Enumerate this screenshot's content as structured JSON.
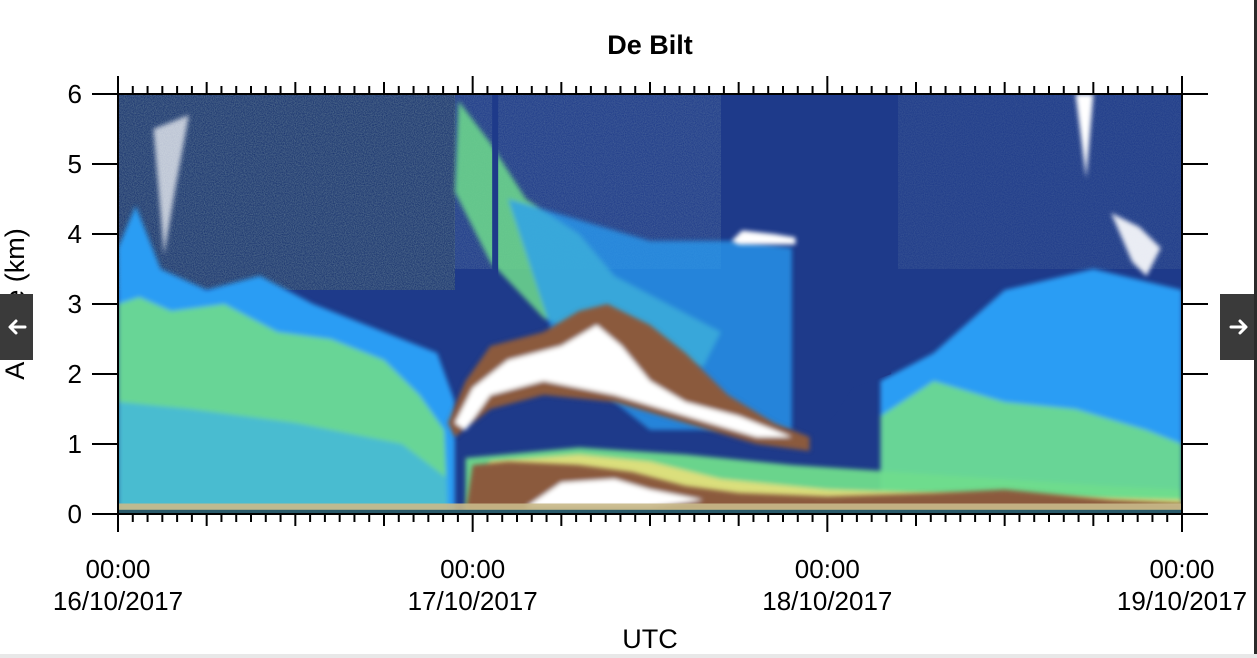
{
  "chart_data": {
    "type": "heatmap",
    "title": "De Bilt",
    "xlabel": "UTC",
    "ylabel": "Altitude (km)",
    "ylim": [
      0,
      6
    ],
    "yticks": [
      "0",
      "1",
      "2",
      "3",
      "4",
      "5",
      "6"
    ],
    "xlim_days": [
      0,
      3
    ],
    "xticks": [
      {
        "day": 0,
        "time": "00:00",
        "date": "16/10/2017"
      },
      {
        "day": 1,
        "time": "00:00",
        "date": "17/10/2017"
      },
      {
        "day": 2,
        "time": "00:00",
        "date": "18/10/2017"
      },
      {
        "day": 3,
        "time": "00:00",
        "date": "19/10/2017"
      }
    ],
    "minor_tick_hours": 1,
    "mid_tick_hours": 6,
    "features": [
      {
        "name": "surface-aerosol-layer",
        "type": "layer",
        "color": "#b7a88a",
        "alt_km": [
          0,
          0.15
        ],
        "day_range": [
          0,
          3
        ]
      },
      {
        "name": "low-cloud-layer",
        "type": "cloud",
        "color": "#ffffff",
        "alt_km": [
          0.1,
          0.8
        ],
        "day_range": [
          0.98,
          2.5
        ]
      },
      {
        "name": "mid-cloud-layer",
        "type": "cloud",
        "color": "#ffffff",
        "alt_km": [
          1.2,
          2.8
        ],
        "day_range": [
          0.92,
          1.95
        ]
      },
      {
        "name": "altocumulus-4km",
        "type": "cloud",
        "color": "#ffffff",
        "alt_km": [
          3.9,
          4.0
        ],
        "day_range": [
          1.73,
          1.91
        ]
      },
      {
        "name": "cirrus-top-right",
        "type": "cloud",
        "color": "#ffffff",
        "alt_km": [
          4.8,
          6.0
        ],
        "day_range": [
          2.7,
          2.75
        ]
      }
    ],
    "colors": {
      "background_low": "#1e3a8a",
      "background_noise": "#16306e",
      "aerosol": "#2a9df4",
      "aerosol_dense": "#6fdc8c",
      "cloud_edge": "#e8e07a",
      "cloud_brown": "#8b5a3c",
      "cloud": "#ffffff"
    }
  },
  "nav": {
    "prev_icon": "arrow-left-icon",
    "next_icon": "arrow-right-icon"
  }
}
